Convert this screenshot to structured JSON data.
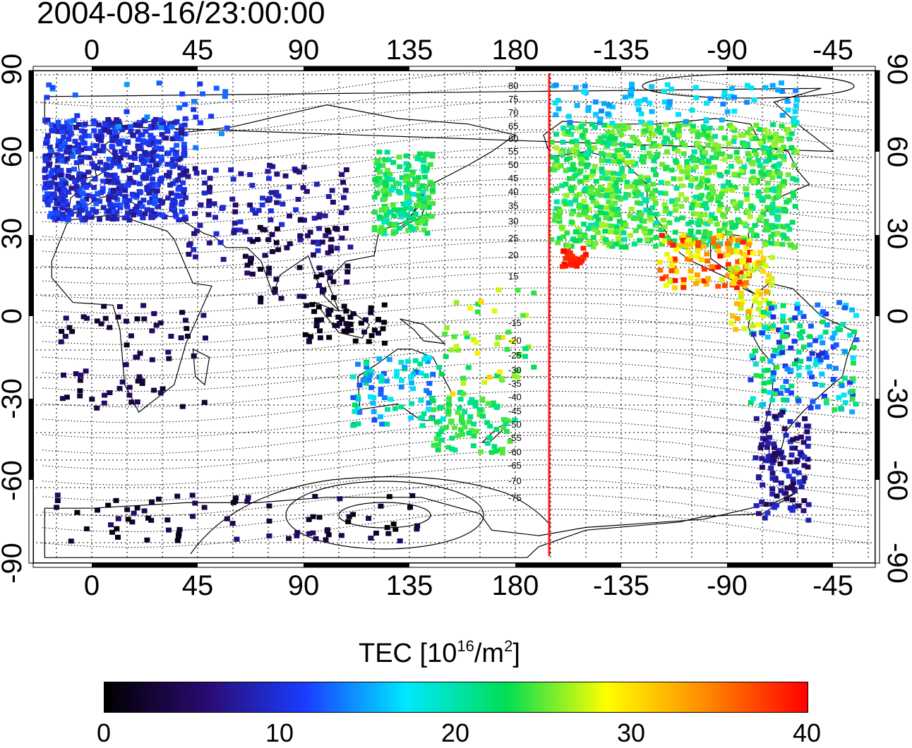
{
  "title": "2004-08-16/23:00:00",
  "top_axis_labels": [
    "0",
    "45",
    "90",
    "135",
    "180",
    "-135",
    "-90",
    "-45"
  ],
  "bottom_axis_labels": [
    "0",
    "45",
    "90",
    "135",
    "180",
    "-135",
    "-90",
    "-45"
  ],
  "left_axis_labels": [
    "90",
    "60",
    "30",
    "0",
    "-30",
    "-60",
    "-90"
  ],
  "right_axis_labels": [
    "90",
    "60",
    "30",
    "0",
    "-30",
    "-60",
    "-90"
  ],
  "magnetic_latitude_labels": [
    "80",
    "75",
    "70",
    "65",
    "60",
    "55",
    "50",
    "45",
    "40",
    "35",
    "30",
    "25",
    "20",
    "15",
    "-15",
    "-20",
    "-25",
    "-30",
    "-35",
    "-40",
    "-45",
    "-50",
    "-55",
    "-60",
    "-65",
    "-70",
    "-75"
  ],
  "colorbar": {
    "title_prefix": "TEC  [10",
    "title_exp1": "16",
    "title_mid": "/m",
    "title_exp2": "2",
    "title_suffix": "]",
    "ticks": [
      "0",
      "10",
      "20",
      "30",
      "40"
    ],
    "min": 0,
    "max": 40,
    "stops": [
      "#000000",
      "#2a0a6e",
      "#1a3cff",
      "#00e8ff",
      "#00dd55",
      "#ffff00",
      "#ff8800",
      "#ff0000"
    ]
  },
  "colors": {
    "terminator_line": "#ff1a1a",
    "frame": "#000000"
  },
  "terminator_longitude": 196
}
